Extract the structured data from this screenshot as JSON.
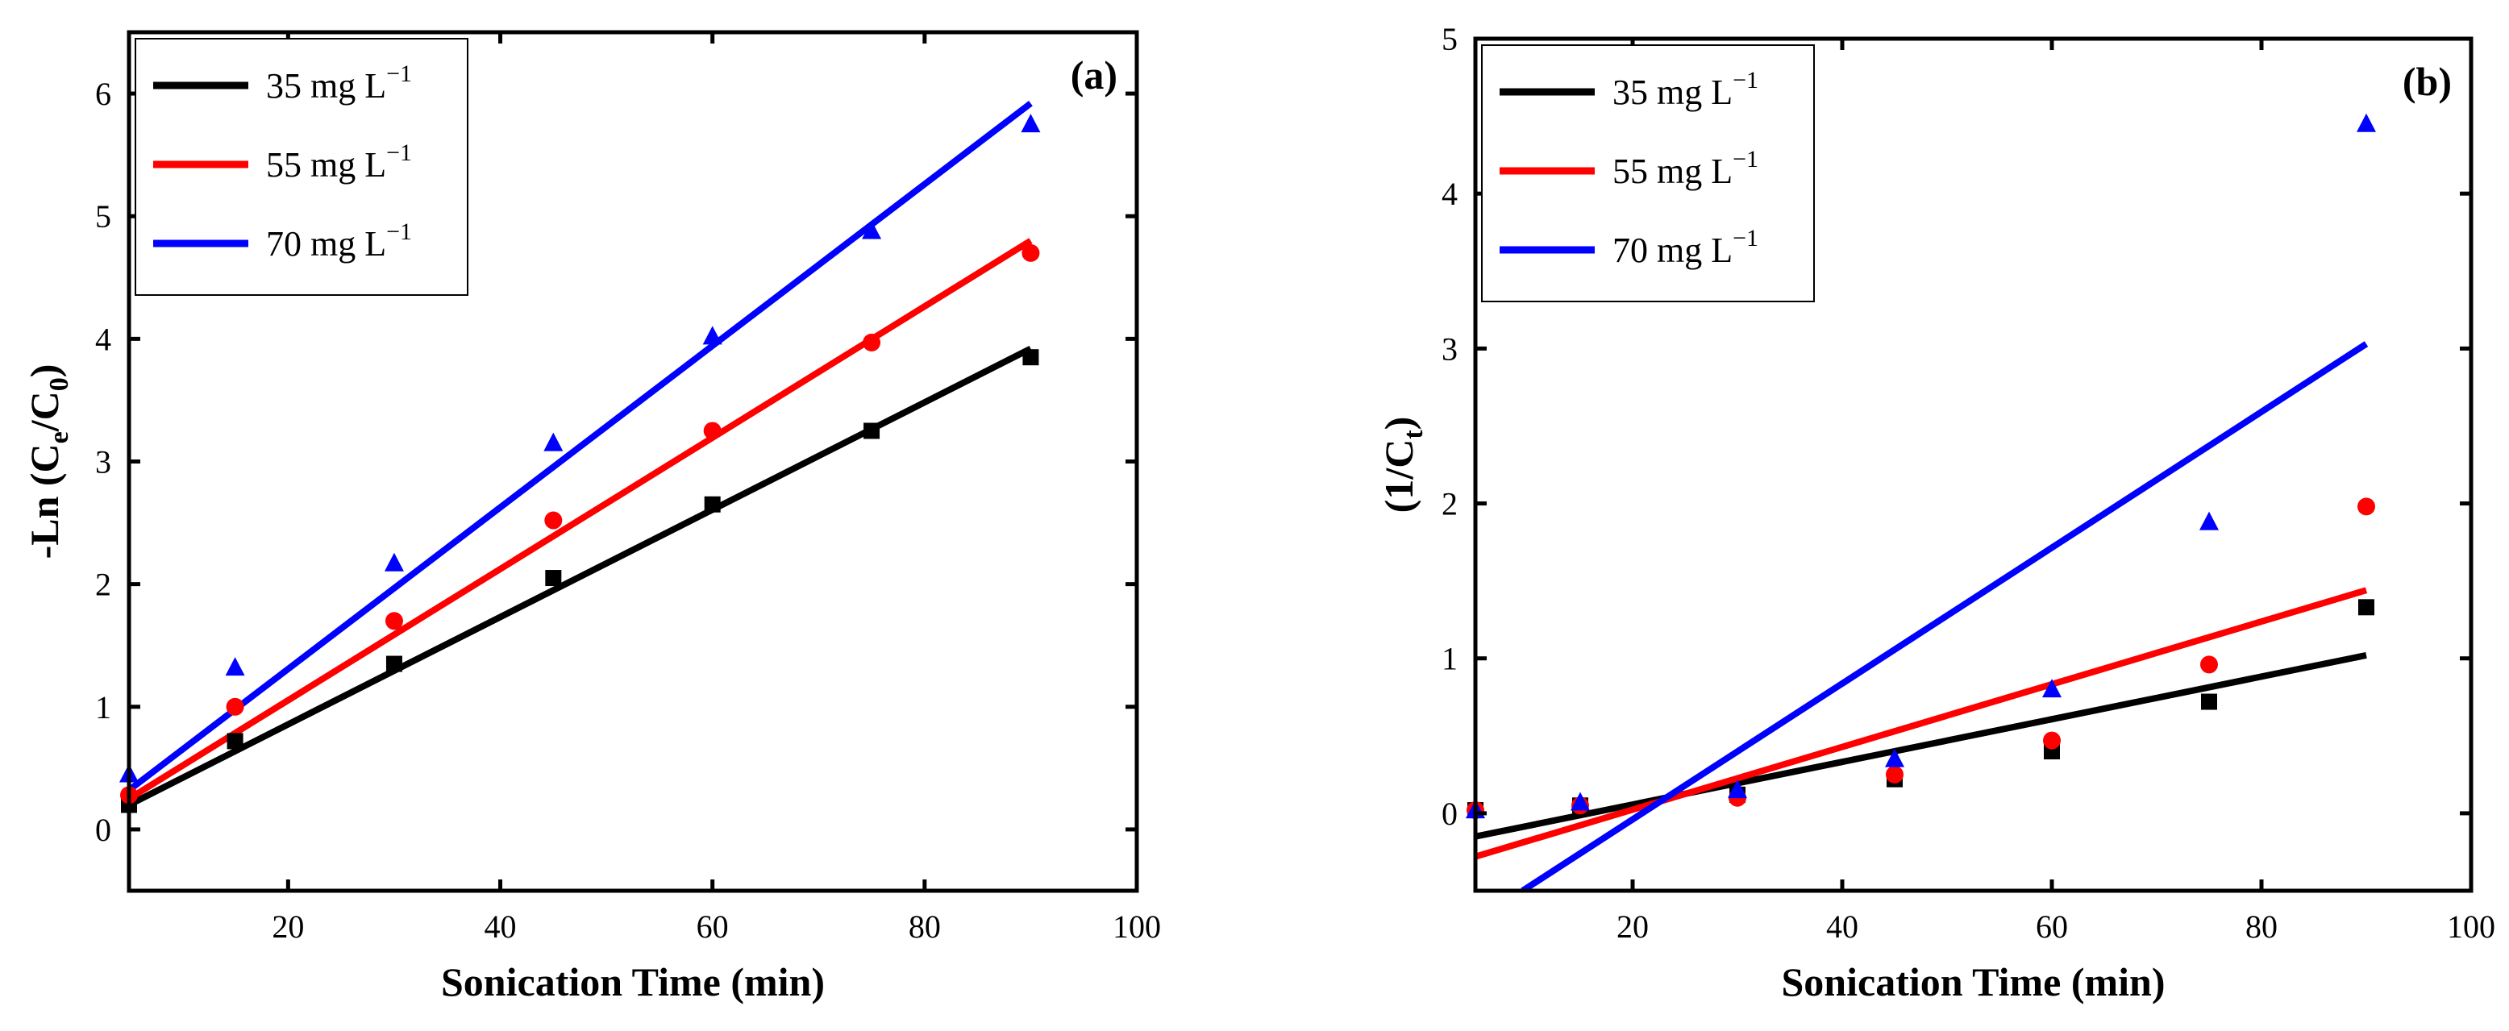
{
  "chart_data": [
    {
      "type": "scatter",
      "panel": "(a)",
      "xlabel": "Sonication Time (min)",
      "ylabel": "-Ln (Ce/C0)",
      "ylabel_parts": [
        "-Ln (C",
        "e",
        "/C",
        "0",
        ")"
      ],
      "xlim": [
        5,
        100
      ],
      "ylim": [
        -0.5,
        6.5
      ],
      "xticks": [
        20,
        40,
        60,
        80,
        100
      ],
      "yticks": [
        0,
        1,
        2,
        3,
        4,
        5,
        6
      ],
      "legend_position": "top-left",
      "series": [
        {
          "name": "35 mg L-1",
          "label_main": "35 mg L",
          "label_sup": "−1",
          "color": "#000000",
          "marker": "square",
          "x": [
            5,
            15,
            30,
            45,
            60,
            75,
            90
          ],
          "y": [
            0.2,
            0.72,
            1.35,
            2.05,
            2.65,
            3.25,
            3.85
          ],
          "fit": {
            "x": [
              5,
              90
            ],
            "y": [
              0.2,
              3.92
            ]
          }
        },
        {
          "name": "55 mg L-1",
          "label_main": "55 mg L",
          "label_sup": "−1",
          "color": "#ff0000",
          "marker": "circle",
          "x": [
            5,
            15,
            30,
            45,
            60,
            75,
            90
          ],
          "y": [
            0.28,
            1.0,
            1.7,
            2.52,
            3.25,
            3.97,
            4.7
          ],
          "fit": {
            "x": [
              5,
              90
            ],
            "y": [
              0.25,
              4.8
            ]
          }
        },
        {
          "name": "70 mg L-1",
          "label_main": "70 mg L",
          "label_sup": "−1",
          "color": "#0000ff",
          "marker": "triangle",
          "x": [
            5,
            15,
            30,
            45,
            60,
            75,
            90
          ],
          "y": [
            0.45,
            1.32,
            2.17,
            3.15,
            4.02,
            4.88,
            5.75
          ],
          "fit": {
            "x": [
              5,
              90
            ],
            "y": [
              0.32,
              5.92
            ]
          }
        }
      ]
    },
    {
      "type": "scatter",
      "panel": "(b)",
      "xlabel": "Sonication Time (min)",
      "ylabel": "(1/Ct)",
      "ylabel_parts": [
        "(1/C",
        "t",
        ")"
      ],
      "xlim": [
        5,
        100
      ],
      "ylim": [
        -0.5,
        5
      ],
      "xticks": [
        20,
        40,
        60,
        80,
        100
      ],
      "yticks": [
        0,
        1,
        2,
        3,
        4,
        5
      ],
      "legend_position": "top-left",
      "series": [
        {
          "name": "35 mg L-1",
          "label_main": "35 mg L",
          "label_sup": "−1",
          "color": "#000000",
          "marker": "square",
          "x": [
            5,
            15,
            30,
            45,
            60,
            75,
            90
          ],
          "y": [
            0.02,
            0.05,
            0.12,
            0.22,
            0.4,
            0.72,
            1.33
          ],
          "fit": {
            "x": [
              5,
              90
            ],
            "y": [
              -0.15,
              1.02
            ]
          }
        },
        {
          "name": "55 mg L-1",
          "label_main": "55 mg L",
          "label_sup": "−1",
          "color": "#ff0000",
          "marker": "circle",
          "x": [
            5,
            15,
            30,
            45,
            60,
            75,
            90
          ],
          "y": [
            0.02,
            0.05,
            0.1,
            0.25,
            0.47,
            0.96,
            1.98
          ],
          "fit": {
            "x": [
              5,
              90
            ],
            "y": [
              -0.28,
              1.44
            ]
          }
        },
        {
          "name": "70 mg L-1",
          "label_main": "70 mg L",
          "label_sup": "−1",
          "color": "#0000ff",
          "marker": "triangle",
          "x": [
            5,
            15,
            30,
            45,
            60,
            75,
            90
          ],
          "y": [
            0.02,
            0.07,
            0.15,
            0.35,
            0.8,
            1.88,
            4.45
          ],
          "fit": {
            "x": [
              9.5,
              90
            ],
            "y": [
              -0.5,
              3.03
            ]
          }
        }
      ]
    }
  ]
}
